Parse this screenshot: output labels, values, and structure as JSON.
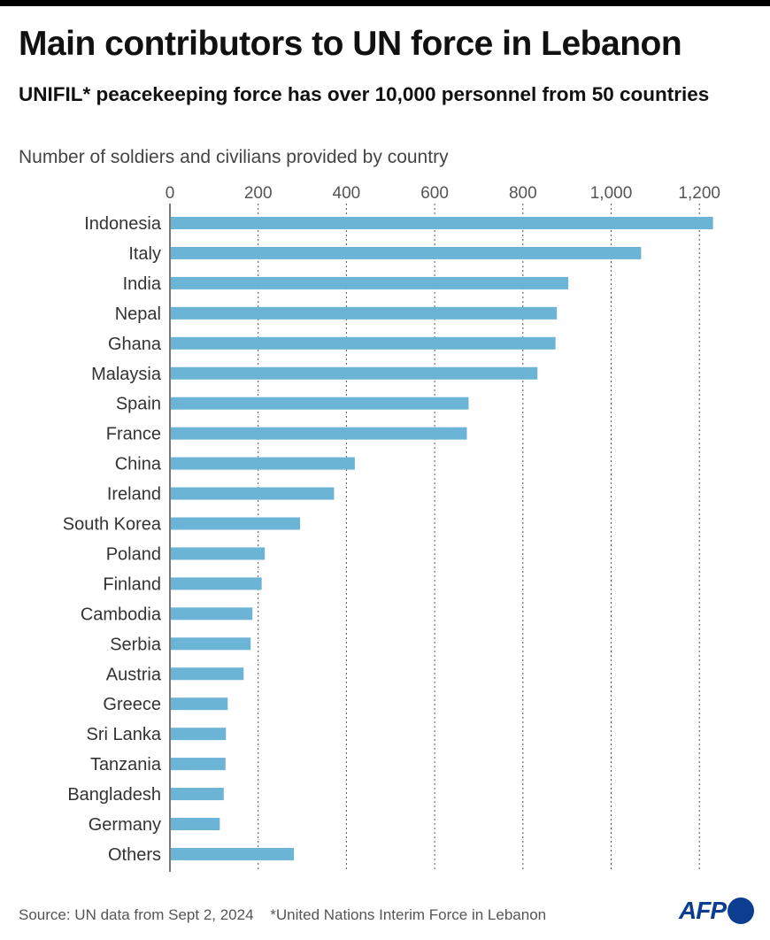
{
  "header": {
    "title": "Main contributors to UN force in Lebanon",
    "subtitle": "UNIFIL* peacekeeping force has over 10,000 personnel from 50 countries"
  },
  "colors": {
    "bar": "#6cb4d6",
    "grid": "#555555",
    "title": "#111111",
    "logo": "#0b3d91"
  },
  "chart_data": {
    "type": "bar",
    "orientation": "horizontal",
    "xlabel": "Number of soldiers and civilians provided by country",
    "xlim": [
      0,
      1250
    ],
    "x_ticks": [
      0,
      200,
      400,
      600,
      800,
      1000,
      1200
    ],
    "x_tick_labels": [
      "0",
      "200",
      "400",
      "600",
      "800",
      "1,000",
      "1,200"
    ],
    "grid": "vertical dotted",
    "categories": [
      "Indonesia",
      "Italy",
      "India",
      "Nepal",
      "Ghana",
      "Malaysia",
      "Spain",
      "France",
      "China",
      "Ireland",
      "South Korea",
      "Poland",
      "Finland",
      "Cambodia",
      "Serbia",
      "Austria",
      "Greece",
      "Sri Lanka",
      "Tanzania",
      "Bangladesh",
      "Germany",
      "Others"
    ],
    "values": [
      1231,
      1068,
      903,
      877,
      874,
      833,
      677,
      673,
      419,
      372,
      295,
      215,
      208,
      187,
      183,
      167,
      131,
      127,
      126,
      122,
      113,
      281
    ]
  },
  "footer": {
    "source": "Source: UN data from Sept 2, 2024",
    "note": "*United Nations Interim Force in Lebanon",
    "logo": "AFP"
  }
}
